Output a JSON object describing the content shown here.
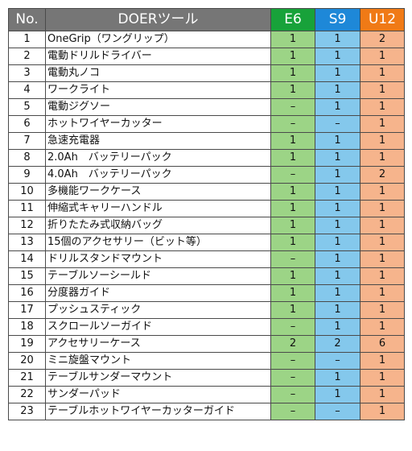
{
  "header": {
    "no": "No.",
    "tool": "DOERツール",
    "e6": "E6",
    "s9": "S9",
    "u12": "U12"
  },
  "colors": {
    "e6_header": "#18a23a",
    "s9_header": "#1e88d8",
    "u12_header": "#f07a16",
    "e6_cell": "#9cd486",
    "s9_cell": "#84c8ec",
    "u12_cell": "#f6b48c",
    "header_gray": "#767676"
  },
  "rows": [
    {
      "no": "1",
      "name": "OneGrip（ワングリップ）",
      "e6": "1",
      "s9": "1",
      "u12": "2"
    },
    {
      "no": "2",
      "name": "電動ドリルドライバー",
      "e6": "1",
      "s9": "1",
      "u12": "1"
    },
    {
      "no": "3",
      "name": "電動丸ノコ",
      "e6": "1",
      "s9": "1",
      "u12": "1"
    },
    {
      "no": "4",
      "name": "ワークライト",
      "e6": "1",
      "s9": "1",
      "u12": "1"
    },
    {
      "no": "5",
      "name": "電動ジグソー",
      "e6": "–",
      "s9": "1",
      "u12": "1"
    },
    {
      "no": "6",
      "name": "ホットワイヤーカッター",
      "e6": "–",
      "s9": "–",
      "u12": "1"
    },
    {
      "no": "7",
      "name": "急速充電器",
      "e6": "1",
      "s9": "1",
      "u12": "1"
    },
    {
      "no": "8",
      "name": "2.0Ah　バッテリーパック",
      "e6": "1",
      "s9": "1",
      "u12": "1"
    },
    {
      "no": "9",
      "name": "4.0Ah　バッテリーパック",
      "e6": "–",
      "s9": "1",
      "u12": "2"
    },
    {
      "no": "10",
      "name": "多機能ワークケース",
      "e6": "1",
      "s9": "1",
      "u12": "1"
    },
    {
      "no": "11",
      "name": "伸縮式キャリーハンドル",
      "e6": "1",
      "s9": "1",
      "u12": "1"
    },
    {
      "no": "12",
      "name": "折りたたみ式収納バッグ",
      "e6": "1",
      "s9": "1",
      "u12": "1"
    },
    {
      "no": "13",
      "name": "15個のアクセサリー（ビット等）",
      "e6": "1",
      "s9": "1",
      "u12": "1"
    },
    {
      "no": "14",
      "name": "ドリルスタンドマウント",
      "e6": "–",
      "s9": "1",
      "u12": "1"
    },
    {
      "no": "15",
      "name": "テーブルソーシールド",
      "e6": "1",
      "s9": "1",
      "u12": "1"
    },
    {
      "no": "16",
      "name": "分度器ガイド",
      "e6": "1",
      "s9": "1",
      "u12": "1"
    },
    {
      "no": "17",
      "name": "プッシュスティック",
      "e6": "1",
      "s9": "1",
      "u12": "1"
    },
    {
      "no": "18",
      "name": "スクロールソーガイド",
      "e6": "–",
      "s9": "1",
      "u12": "1"
    },
    {
      "no": "19",
      "name": "アクセサリーケース",
      "e6": "2",
      "s9": "2",
      "u12": "6"
    },
    {
      "no": "20",
      "name": "ミニ旋盤マウント",
      "e6": "–",
      "s9": "–",
      "u12": "1"
    },
    {
      "no": "21",
      "name": "テーブルサンダーマウント",
      "e6": "–",
      "s9": "1",
      "u12": "1"
    },
    {
      "no": "22",
      "name": "サンダーパッド",
      "e6": "–",
      "s9": "1",
      "u12": "1"
    },
    {
      "no": "23",
      "name": "テーブルホットワイヤーカッターガイド",
      "e6": "–",
      "s9": "–",
      "u12": "1"
    }
  ]
}
